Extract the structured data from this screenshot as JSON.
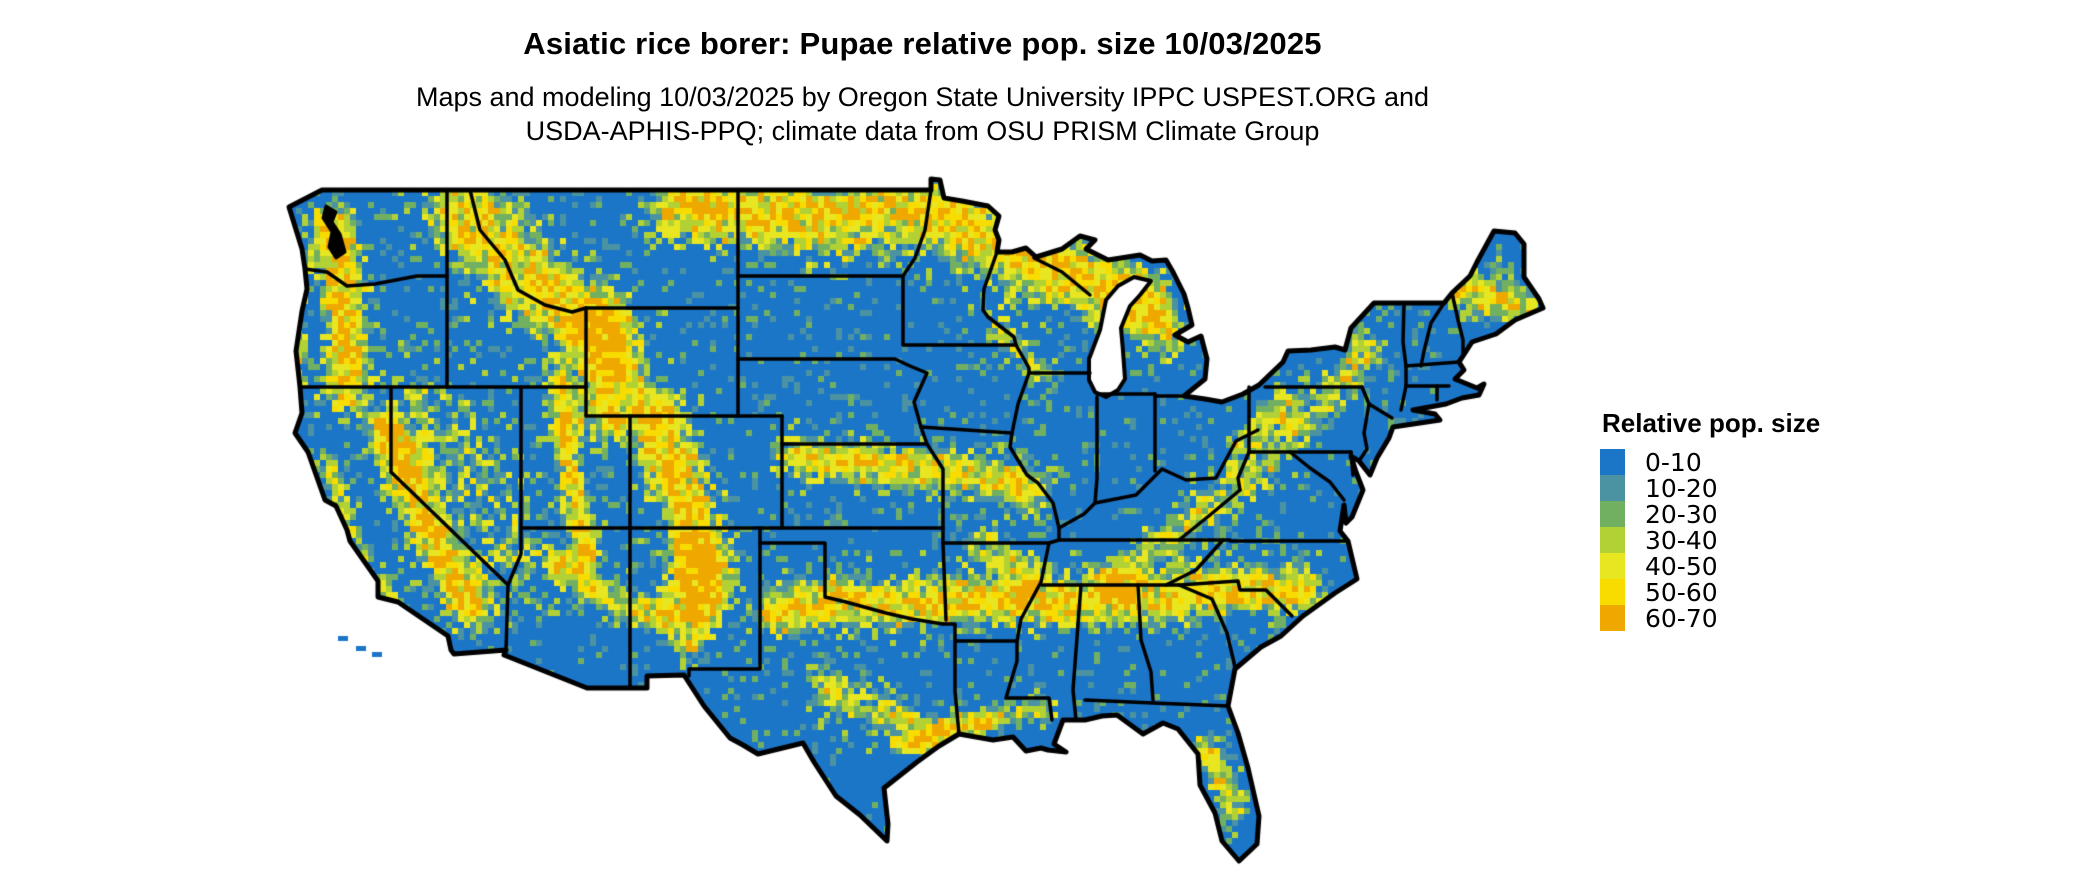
{
  "header": {
    "title": "Asiatic rice borer: Pupae relative pop. size 10/03/2025",
    "subtitle_line1": "Maps and modeling 10/03/2025 by Oregon State University IPPC USPEST.ORG and",
    "subtitle_line2": "USDA-APHIS-PPQ; climate data from OSU PRISM Climate Group"
  },
  "legend": {
    "title": "Relative pop. size",
    "items": [
      {
        "label": "0-10",
        "color": "#1C76C8"
      },
      {
        "label": "10-20",
        "color": "#4B93A2"
      },
      {
        "label": "20-30",
        "color": "#72B061"
      },
      {
        "label": "30-40",
        "color": "#B2D135"
      },
      {
        "label": "40-50",
        "color": "#E7E621"
      },
      {
        "label": "50-60",
        "color": "#F8DC00"
      },
      {
        "label": "60-70",
        "color": "#EFA800"
      }
    ]
  },
  "map": {
    "region": "Continental United States",
    "land_base_color": "#1C76C8",
    "border_color": "#000000",
    "water_color": "#FFFFFF"
  }
}
